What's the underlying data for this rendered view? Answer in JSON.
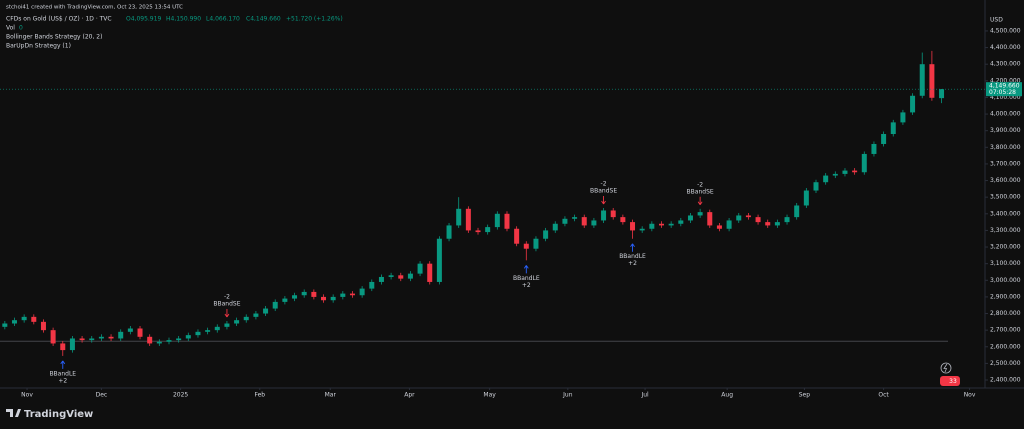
{
  "chart_data": {
    "type": "candlestick",
    "credit": "stchoi41 created with TradingView.com, Oct 23, 2025 13:54 UTC",
    "title": "CFDs on Gold (US$ / OZ) · 1D · TVC",
    "ohlc_text": [
      "O4,095.919",
      "H4,150.990",
      "L4,066.170",
      "C4,149.660",
      "+51.720 (+1.26%)"
    ],
    "volume_label": "Vol",
    "volume": 0,
    "indicators": [
      "Bollinger Bands Strategy (20, 2)",
      "BarUpDn Strategy (1)"
    ],
    "currency": "USD",
    "last_price_label": "4,149.660",
    "countdown": "07:05:28",
    "badge": "33",
    "brand": "TradingView",
    "up_color": "#089981",
    "down_color": "#f23645",
    "open": [
      2720,
      2740,
      2760,
      2780,
      2750,
      2700,
      2620,
      2580,
      2650,
      2640,
      2650,
      2660,
      2650,
      2690,
      2710,
      2660,
      2620,
      2630,
      2640,
      2650,
      2670,
      2690,
      2700,
      2720,
      2740,
      2760,
      2780,
      2800,
      2830,
      2870,
      2890,
      2910,
      2930,
      2900,
      2880,
      2900,
      2920,
      2910,
      2950,
      2990,
      3020,
      3030,
      3010,
      3040,
      3100,
      2990,
      3250,
      3330,
      3430,
      3300,
      3290,
      3320,
      3400,
      3310,
      3220,
      3190,
      3250,
      3300,
      3340,
      3370,
      3380,
      3330,
      3360,
      3420,
      3380,
      3350,
      3300,
      3310,
      3340,
      3330,
      3340,
      3360,
      3390,
      3410,
      3330,
      3310,
      3360,
      3390,
      3380,
      3350,
      3330,
      3350,
      3380,
      3450,
      3540,
      3590,
      3630,
      3640,
      3660,
      3650,
      3760,
      3820,
      3880,
      3950,
      4010,
      4110,
      4300,
      4095.919
    ],
    "high": [
      2755,
      2775,
      2795,
      2795,
      2765,
      2715,
      2635,
      2665,
      2665,
      2665,
      2675,
      2675,
      2705,
      2725,
      2725,
      2675,
      2645,
      2655,
      2665,
      2685,
      2705,
      2715,
      2735,
      2755,
      2775,
      2795,
      2815,
      2845,
      2885,
      2905,
      2925,
      2945,
      2945,
      2915,
      2915,
      2935,
      2935,
      2965,
      3005,
      3035,
      3045,
      3045,
      3055,
      3115,
      3115,
      3265,
      3345,
      3500,
      3445,
      3315,
      3335,
      3415,
      3415,
      3325,
      3235,
      3265,
      3315,
      3355,
      3385,
      3395,
      3395,
      3375,
      3435,
      3435,
      3395,
      3365,
      3325,
      3355,
      3355,
      3355,
      3375,
      3405,
      3430,
      3425,
      3345,
      3375,
      3405,
      3405,
      3395,
      3365,
      3365,
      3395,
      3465,
      3555,
      3605,
      3645,
      3655,
      3675,
      3675,
      3775,
      3835,
      3895,
      3965,
      4025,
      4125,
      4370,
      4380,
      4150.99
    ],
    "low": [
      2705,
      2725,
      2745,
      2735,
      2685,
      2605,
      2545,
      2565,
      2625,
      2625,
      2635,
      2635,
      2635,
      2675,
      2645,
      2605,
      2605,
      2615,
      2625,
      2635,
      2655,
      2675,
      2685,
      2705,
      2725,
      2745,
      2765,
      2785,
      2815,
      2855,
      2875,
      2895,
      2885,
      2865,
      2865,
      2885,
      2895,
      2895,
      2935,
      2975,
      3005,
      2995,
      2995,
      3025,
      2975,
      2975,
      3235,
      3315,
      3285,
      3275,
      3275,
      3305,
      3295,
      3205,
      3120,
      3175,
      3235,
      3285,
      3325,
      3355,
      3315,
      3315,
      3345,
      3365,
      3335,
      3250,
      3285,
      3295,
      3315,
      3315,
      3325,
      3345,
      3375,
      3315,
      3295,
      3295,
      3345,
      3365,
      3335,
      3315,
      3315,
      3335,
      3365,
      3435,
      3525,
      3575,
      3615,
      3625,
      3635,
      3635,
      3745,
      3805,
      3865,
      3935,
      3995,
      4095,
      4080,
      4066.17
    ],
    "close": [
      2740,
      2760,
      2780,
      2750,
      2700,
      2620,
      2580,
      2650,
      2640,
      2650,
      2660,
      2650,
      2690,
      2710,
      2660,
      2620,
      2630,
      2640,
      2650,
      2670,
      2690,
      2700,
      2720,
      2740,
      2760,
      2780,
      2800,
      2830,
      2870,
      2890,
      2910,
      2930,
      2900,
      2880,
      2900,
      2920,
      2910,
      2950,
      2990,
      3020,
      3030,
      3010,
      3040,
      3100,
      2990,
      3250,
      3330,
      3430,
      3300,
      3290,
      3320,
      3400,
      3310,
      3220,
      3190,
      3250,
      3300,
      3340,
      3370,
      3380,
      3330,
      3360,
      3420,
      3380,
      3350,
      3300,
      3310,
      3340,
      3330,
      3340,
      3360,
      3390,
      3410,
      3330,
      3310,
      3360,
      3390,
      3380,
      3350,
      3330,
      3350,
      3380,
      3450,
      3540,
      3590,
      3630,
      3640,
      3660,
      3650,
      3760,
      3820,
      3880,
      3950,
      4010,
      4110,
      4300,
      4097.94,
      4149.66
    ],
    "signals": [
      {
        "index": 6,
        "side": "long",
        "label": "BBandLE",
        "qty": "+2"
      },
      {
        "index": 23,
        "side": "short",
        "label": "BBandSE",
        "qty": "-2"
      },
      {
        "index": 54,
        "side": "long",
        "label": "BBandLE",
        "qty": "+2"
      },
      {
        "index": 62,
        "side": "short",
        "label": "BBandSE",
        "qty": "-2"
      },
      {
        "index": 65,
        "side": "long",
        "label": "BBandLE",
        "qty": "+2"
      },
      {
        "index": 72,
        "side": "short",
        "label": "BBandSE",
        "qty": "-2"
      }
    ],
    "reference_line": 2634,
    "xlim": [
      -0.5,
      101.5
    ],
    "xticks": [
      {
        "value": 2.3,
        "label": "Nov"
      },
      {
        "value": 10.0,
        "label": "Dec"
      },
      {
        "value": 18.2,
        "label": "2025"
      },
      {
        "value": 26.4,
        "label": "Feb"
      },
      {
        "value": 33.7,
        "label": "Mar"
      },
      {
        "value": 41.9,
        "label": "Apr"
      },
      {
        "value": 50.2,
        "label": "May"
      },
      {
        "value": 58.3,
        "label": "Jun"
      },
      {
        "value": 66.3,
        "label": "Jul"
      },
      {
        "value": 74.8,
        "label": "Aug"
      },
      {
        "value": 82.8,
        "label": "Sep"
      },
      {
        "value": 91.0,
        "label": "Oct"
      },
      {
        "value": 99.9,
        "label": "Nov"
      }
    ],
    "ylim": [
      2352,
      4614
    ],
    "yticks": [
      {
        "value": 2400,
        "label": "2,400.000"
      },
      {
        "value": 2500,
        "label": "2,500.000"
      },
      {
        "value": 2600,
        "label": "2,600.000"
      },
      {
        "value": 2700,
        "label": "2,700.000"
      },
      {
        "value": 2800,
        "label": "2,800.000"
      },
      {
        "value": 2900,
        "label": "2,900.000"
      },
      {
        "value": 3000,
        "label": "3,000.000"
      },
      {
        "value": 3100,
        "label": "3,100.000"
      },
      {
        "value": 3200,
        "label": "3,200.000"
      },
      {
        "value": 3300,
        "label": "3,300.000"
      },
      {
        "value": 3400,
        "label": "3,400.000"
      },
      {
        "value": 3500,
        "label": "3,500.000"
      },
      {
        "value": 3600,
        "label": "3,600.000"
      },
      {
        "value": 3700,
        "label": "3,700.000"
      },
      {
        "value": 3800,
        "label": "3,800.000"
      },
      {
        "value": 3900,
        "label": "3,900.000"
      },
      {
        "value": 4000,
        "label": "4,000.000"
      },
      {
        "value": 4100,
        "label": "4,100.000"
      },
      {
        "value": 4200,
        "label": "4,200.000"
      },
      {
        "value": 4300,
        "label": "4,300.000"
      },
      {
        "value": 4400,
        "label": "4,400.000"
      },
      {
        "value": 4500,
        "label": "4,500.000"
      }
    ],
    "grid": false
  }
}
